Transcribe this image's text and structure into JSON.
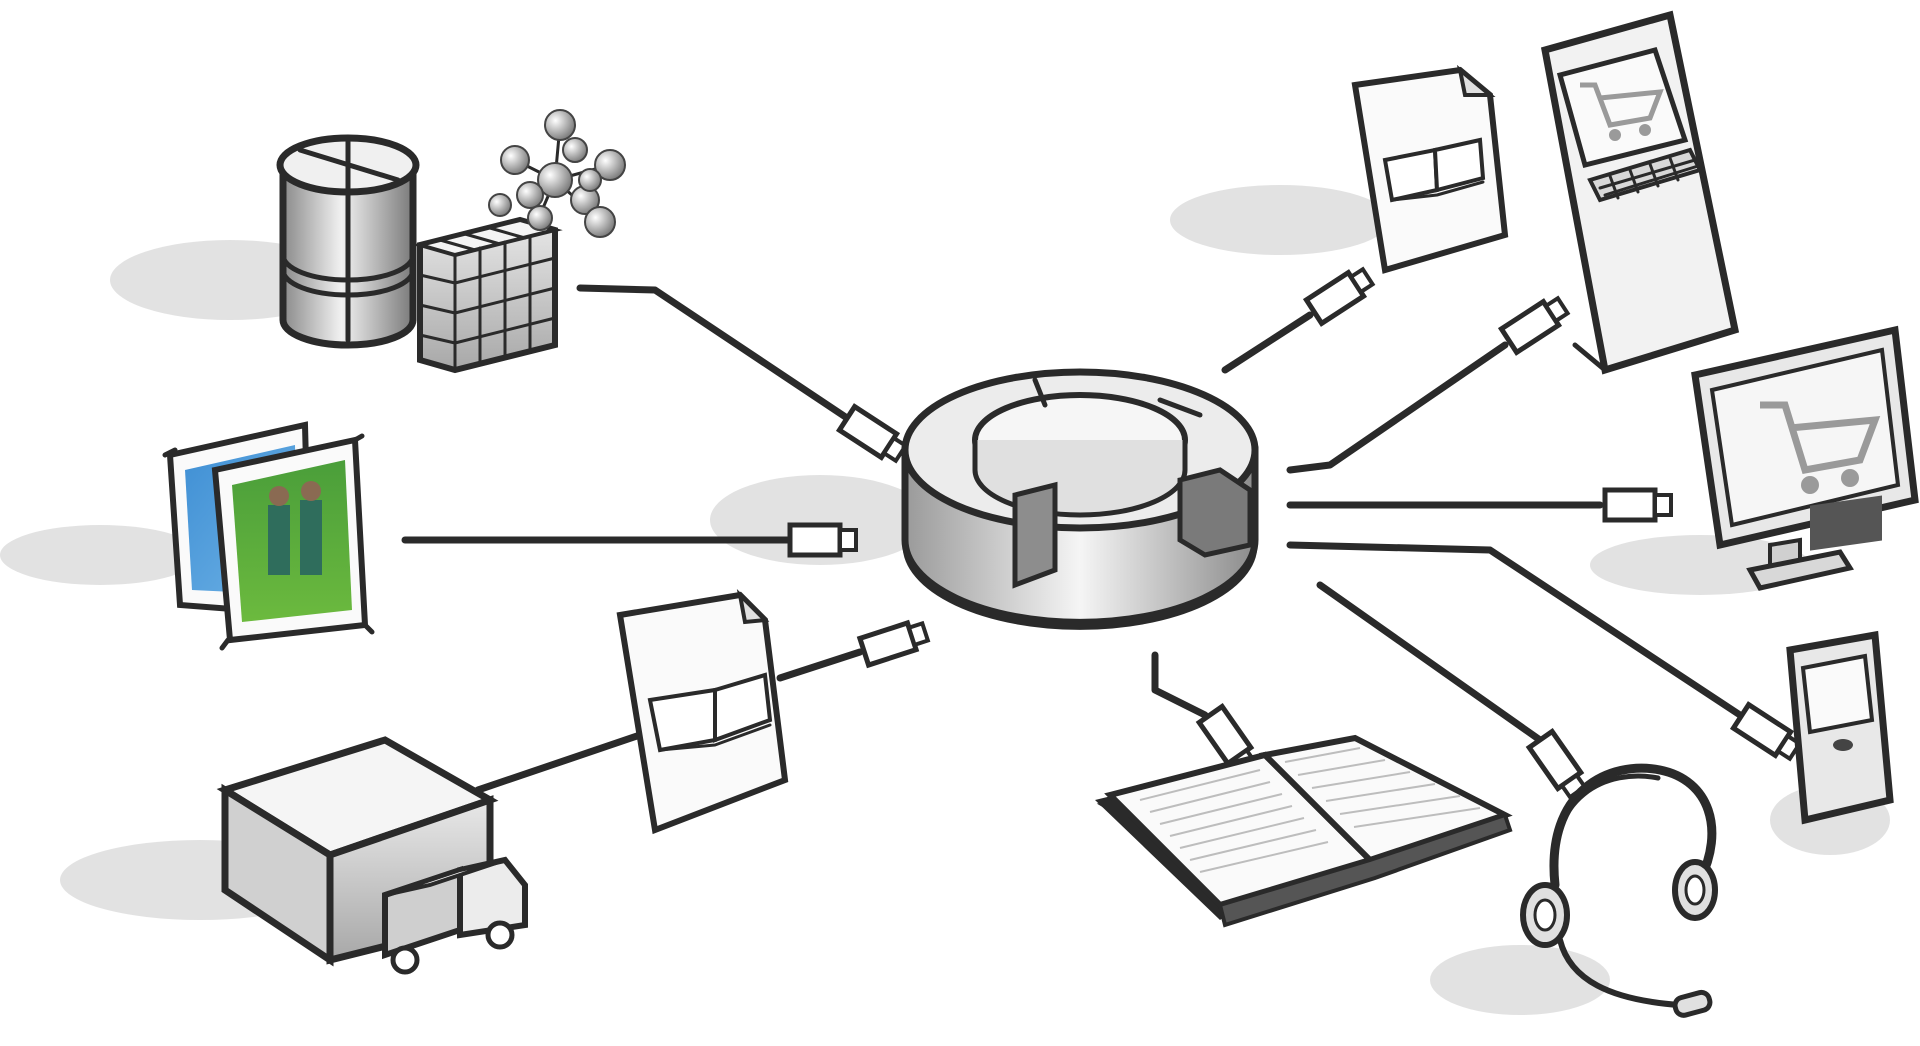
{
  "diagram": {
    "type": "hub-and-spoke",
    "hub": {
      "icon": "central-hub-ring"
    },
    "nodes": [
      {
        "id": "data-sources",
        "icon": "database-and-molecule-icon"
      },
      {
        "id": "images",
        "icon": "photo-frames-icon"
      },
      {
        "id": "warehouse",
        "icon": "warehouse-with-truck-icon"
      },
      {
        "id": "print-doc-left",
        "icon": "book-document-icon"
      },
      {
        "id": "e-document",
        "icon": "book-document-icon"
      },
      {
        "id": "shop-kiosk",
        "icon": "shopping-kiosk-icon"
      },
      {
        "id": "web-shop",
        "icon": "monitor-shopping-cart-icon"
      },
      {
        "id": "mobile",
        "icon": "smartphone-icon"
      },
      {
        "id": "print-book",
        "icon": "open-book-icon"
      },
      {
        "id": "call-center",
        "icon": "headset-icon"
      }
    ]
  },
  "colors": {
    "line": "#2a2a2a",
    "shadow": "#d6d6d6",
    "cart": "#9a9a9a",
    "screen": "#f4f4f4"
  }
}
